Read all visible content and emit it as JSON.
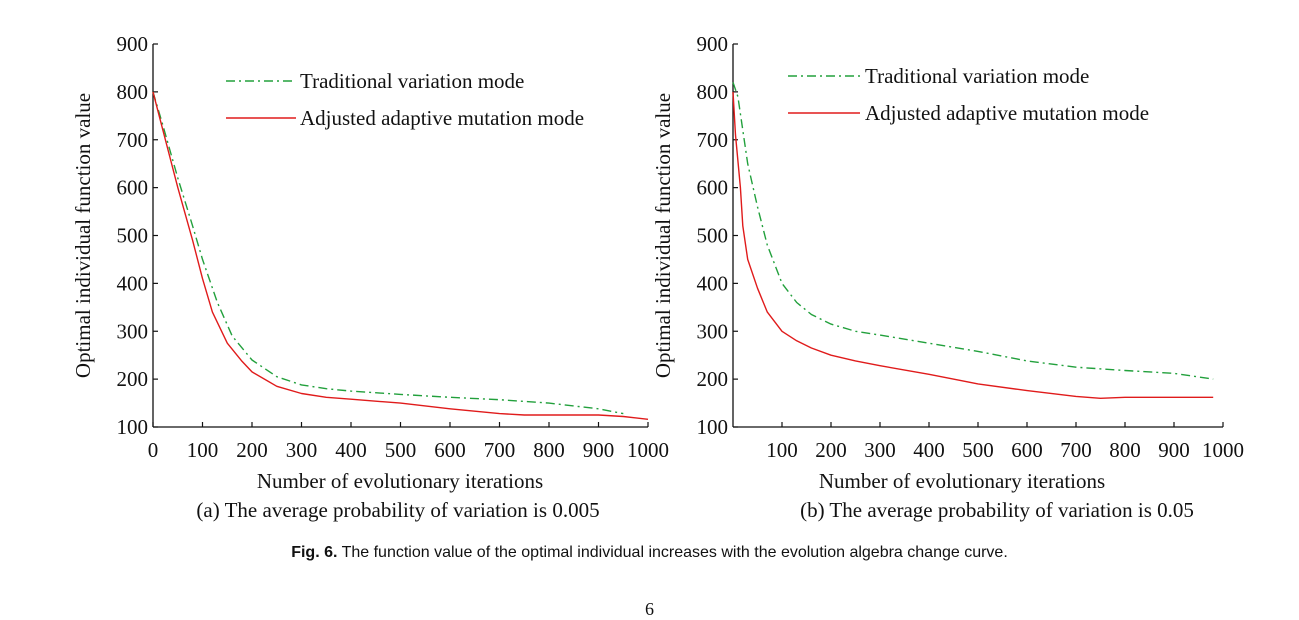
{
  "figure": {
    "caption_label": "Fig. 6.",
    "caption_text": "The function value of the optimal individual increases with the evolution algebra change curve.",
    "page_number": "6"
  },
  "colors": {
    "traditional": "#22a03c",
    "adjusted": "#e01b1b",
    "axis": "#111111"
  },
  "chart_data": [
    {
      "type": "line",
      "subcaption": "(a) The average probability of variation is 0.005",
      "xlabel": "Number of evolutionary iterations",
      "ylabel": "Optimal individual function value",
      "xlim": [
        0,
        1000
      ],
      "ylim": [
        100,
        900
      ],
      "xticks": [
        0,
        100,
        200,
        300,
        400,
        500,
        600,
        700,
        800,
        900,
        1000
      ],
      "xtick_labels": [
        "0",
        "100",
        "200",
        "300",
        "400",
        "500",
        "600",
        "700",
        "800",
        "900",
        "1000"
      ],
      "yticks": [
        100,
        200,
        300,
        400,
        500,
        600,
        700,
        800,
        900
      ],
      "ytick_labels": [
        "100",
        "200",
        "300",
        "400",
        "500",
        "600",
        "700",
        "800",
        "900"
      ],
      "legend_position": "top-right",
      "grid": false,
      "series": [
        {
          "name": "Traditional variation mode",
          "style": "dashdot",
          "color": "#22a03c",
          "x": [
            0,
            20,
            50,
            80,
            100,
            130,
            160,
            200,
            250,
            300,
            350,
            400,
            500,
            600,
            700,
            800,
            900,
            950
          ],
          "y": [
            800,
            730,
            620,
            520,
            450,
            360,
            290,
            240,
            205,
            188,
            180,
            175,
            168,
            162,
            157,
            150,
            138,
            128
          ]
        },
        {
          "name": "Adjusted adaptive mutation mode",
          "style": "solid",
          "color": "#e01b1b",
          "x": [
            0,
            20,
            50,
            80,
            100,
            120,
            150,
            180,
            200,
            250,
            300,
            350,
            400,
            500,
            600,
            700,
            750,
            800,
            900,
            950,
            1000
          ],
          "y": [
            800,
            720,
            600,
            490,
            410,
            340,
            275,
            237,
            215,
            185,
            170,
            162,
            158,
            150,
            138,
            128,
            125,
            125,
            125,
            122,
            116
          ]
        }
      ]
    },
    {
      "type": "line",
      "subcaption": "(b) The average probability of variation is 0.05",
      "xlabel": "Number of evolutionary iterations",
      "ylabel": "Optimal individual function value",
      "xlim": [
        0,
        1000
      ],
      "ylim": [
        100,
        900
      ],
      "xticks": [
        100,
        200,
        300,
        400,
        500,
        600,
        700,
        800,
        900,
        1000
      ],
      "xtick_labels": [
        "100",
        "200",
        "300",
        "400",
        "500",
        "600",
        "700",
        "800",
        "900",
        "1000"
      ],
      "yticks": [
        100,
        200,
        300,
        400,
        500,
        600,
        700,
        800,
        900
      ],
      "ytick_labels": [
        "100",
        "200",
        "300",
        "400",
        "500",
        "600",
        "700",
        "800",
        "900"
      ],
      "legend_position": "top-right",
      "grid": false,
      "series": [
        {
          "name": "Traditional variation mode",
          "style": "dashdot",
          "color": "#22a03c",
          "x": [
            0,
            10,
            30,
            50,
            70,
            100,
            130,
            160,
            200,
            250,
            300,
            400,
            500,
            600,
            700,
            800,
            900,
            980
          ],
          "y": [
            820,
            790,
            650,
            560,
            480,
            400,
            360,
            335,
            315,
            300,
            292,
            275,
            258,
            238,
            225,
            218,
            212,
            200
          ]
        },
        {
          "name": "Adjusted adaptive mutation mode",
          "style": "solid",
          "color": "#e01b1b",
          "x": [
            0,
            5,
            15,
            20,
            30,
            50,
            70,
            100,
            130,
            160,
            200,
            250,
            300,
            400,
            500,
            600,
            700,
            750,
            800,
            900,
            980
          ],
          "y": [
            800,
            710,
            600,
            520,
            450,
            390,
            340,
            300,
            280,
            265,
            250,
            238,
            228,
            210,
            190,
            176,
            164,
            160,
            162,
            162,
            162
          ]
        }
      ]
    }
  ]
}
